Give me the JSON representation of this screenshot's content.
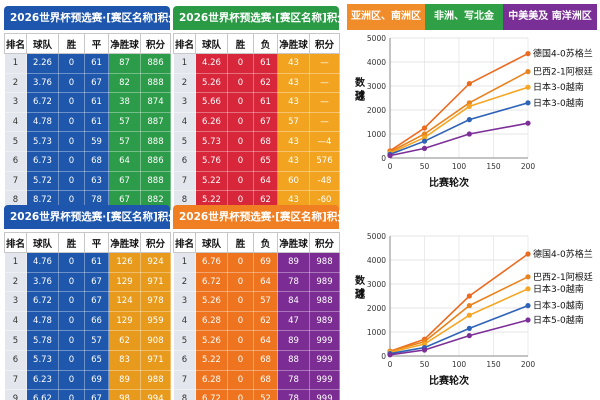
{
  "tabs": [
    {
      "label": "亚洲区、南洲区",
      "color": "#f08d2a"
    },
    {
      "label": "非洲、写北金",
      "color": "#2fa046"
    },
    {
      "label": "中美美及 南洋洲区",
      "color": "#7a2f96"
    }
  ],
  "tables": [
    {
      "title": "2026世界杯预选赛·[赛区名称]积分榜",
      "title_color": "#1e56ad",
      "headers": [
        "排名",
        "球队",
        "胜",
        "平",
        "净胜球",
        "积分"
      ],
      "col_colors": [
        "rank",
        "#1f57ad",
        "#1f57ad",
        "#1f57ad",
        "#2d9c4a",
        "#2d9c4a"
      ],
      "rows": [
        [
          "1",
          "2.26",
          "0",
          "61",
          "87",
          "886"
        ],
        [
          "2",
          "3.76",
          "0",
          "67",
          "82",
          "888"
        ],
        [
          "3",
          "6.72",
          "0",
          "61",
          "38",
          "874"
        ],
        [
          "4",
          "4.78",
          "0",
          "61",
          "57",
          "887"
        ],
        [
          "5",
          "5.73",
          "0",
          "59",
          "57",
          "888"
        ],
        [
          "6",
          "6.73",
          "0",
          "68",
          "64",
          "886"
        ],
        [
          "7",
          "5.72",
          "0",
          "63",
          "67",
          "888"
        ],
        [
          "8",
          "8.72",
          "0",
          "78",
          "67",
          "882"
        ]
      ]
    },
    {
      "title": "2026世界杯预选赛·[赛区名称]积分榜",
      "title_color": "#2a9a45",
      "headers": [
        "排名",
        "球队",
        "胜",
        "负",
        "净胜球",
        "积分"
      ],
      "col_colors": [
        "rank",
        "#d8263a",
        "#d8263a",
        "#d8263a",
        "#f2a421",
        "#f2a421"
      ],
      "rows": [
        [
          "1",
          "4.26",
          "0",
          "61",
          "43",
          "—"
        ],
        [
          "2",
          "5.26",
          "0",
          "62",
          "43",
          "—"
        ],
        [
          "3",
          "5.66",
          "0",
          "61",
          "43",
          "—"
        ],
        [
          "4",
          "6.26",
          "0",
          "67",
          "57",
          "—"
        ],
        [
          "5",
          "5.73",
          "0",
          "68",
          "43",
          "—4"
        ],
        [
          "6",
          "5.76",
          "0",
          "65",
          "43",
          "576"
        ],
        [
          "7",
          "5.22",
          "0",
          "64",
          "60",
          "-48"
        ],
        [
          "8",
          "5.22",
          "0",
          "62",
          "43",
          "-60"
        ]
      ]
    },
    {
      "title": "2026世界杯预选赛·[赛区名称]积分榜",
      "title_color": "#1e56ad",
      "headers": [
        "排名",
        "球队",
        "胜",
        "平",
        "净胜球",
        "积分"
      ],
      "col_colors": [
        "rank",
        "#1f57ad",
        "#1f57ad",
        "#1f57ad",
        "#e89a1c",
        "#e89a1c"
      ],
      "rows": [
        [
          "1",
          "4.76",
          "0",
          "61",
          "126",
          "924"
        ],
        [
          "2",
          "3.76",
          "0",
          "67",
          "129",
          "971"
        ],
        [
          "3",
          "6.72",
          "0",
          "67",
          "124",
          "978"
        ],
        [
          "4",
          "4.78",
          "0",
          "66",
          "129",
          "959"
        ],
        [
          "5",
          "5.78",
          "0",
          "57",
          "62",
          "908"
        ],
        [
          "6",
          "5.73",
          "0",
          "65",
          "83",
          "971"
        ],
        [
          "7",
          "6.23",
          "0",
          "69",
          "89",
          "988"
        ],
        [
          "9",
          "6.62",
          "0",
          "67",
          "98",
          "994"
        ]
      ]
    },
    {
      "title": "2026世界杯预选赛·[赛区名称]积分榜",
      "title_color": "#ef7f22",
      "headers": [
        "排名",
        "球队",
        "胜",
        "负",
        "净胜球",
        "积分"
      ],
      "col_colors": [
        "rank",
        "#ef7420",
        "#ef7420",
        "#ef7420",
        "#7b2d94",
        "#7b2d94"
      ],
      "rows": [
        [
          "1",
          "6.76",
          "0",
          "69",
          "89",
          "988"
        ],
        [
          "2",
          "6.72",
          "0",
          "64",
          "78",
          "989"
        ],
        [
          "3",
          "5.26",
          "0",
          "57",
          "84",
          "988"
        ],
        [
          "4",
          "6.28",
          "0",
          "62",
          "47",
          "989"
        ],
        [
          "5",
          "5.26",
          "0",
          "64",
          "89",
          "999"
        ],
        [
          "6",
          "5.22",
          "0",
          "68",
          "88",
          "999"
        ],
        [
          "7",
          "6.28",
          "0",
          "68",
          "78",
          "999"
        ],
        [
          "8",
          "6.72",
          "0",
          "52",
          "78",
          "999"
        ]
      ]
    }
  ],
  "chart_data": [
    {
      "type": "line",
      "xlabel": "比赛轮次",
      "ylabel": "数球进",
      "xlim": [
        0,
        200
      ],
      "ylim": [
        0,
        5000
      ],
      "xticks": [
        0,
        50,
        100,
        150,
        200
      ],
      "yticks": [
        0,
        1000,
        2000,
        3000,
        4000,
        5000
      ],
      "x": [
        0,
        50,
        115,
        200
      ],
      "series": [
        {
          "name": "德国4-0苏格兰",
          "color": "#ec6a1f",
          "values": [
            300,
            1250,
            3100,
            4350
          ]
        },
        {
          "name": "巴西2-1阿根廷",
          "color": "#e8831e",
          "values": [
            250,
            1000,
            2300,
            3600
          ]
        },
        {
          "name": "日本3-0越南",
          "color": "#f5a623",
          "values": [
            200,
            850,
            2150,
            2950
          ]
        },
        {
          "name": "日本3-0越南",
          "color": "#2e63b8",
          "values": [
            150,
            700,
            1600,
            2300
          ]
        },
        {
          "name": "",
          "color": "#7d2f98",
          "values": [
            100,
            400,
            1000,
            1450
          ]
        }
      ]
    },
    {
      "type": "line",
      "xlabel": "比赛轮次",
      "ylabel": "数球进",
      "xlim": [
        0,
        200
      ],
      "ylim": [
        0,
        5000
      ],
      "xticks": [
        0,
        50,
        100,
        150,
        200
      ],
      "yticks": [
        0,
        1000,
        2000,
        3000,
        4000,
        5000
      ],
      "x": [
        0,
        50,
        115,
        200
      ],
      "series": [
        {
          "name": "德国4-0苏格兰",
          "color": "#ec6a1f",
          "values": [
            200,
            700,
            2500,
            4250
          ]
        },
        {
          "name": "巴西2-1阿根廷",
          "color": "#e8831e",
          "values": [
            200,
            600,
            2100,
            3300
          ]
        },
        {
          "name": "日本3-0越南",
          "color": "#f5a623",
          "values": [
            150,
            500,
            1700,
            2800
          ]
        },
        {
          "name": "日本3-0越南",
          "color": "#2e63b8",
          "values": [
            100,
            350,
            1150,
            2100
          ]
        },
        {
          "name": "日本5-0越南",
          "color": "#7d2f98",
          "values": [
            50,
            250,
            850,
            1500
          ]
        }
      ]
    }
  ]
}
